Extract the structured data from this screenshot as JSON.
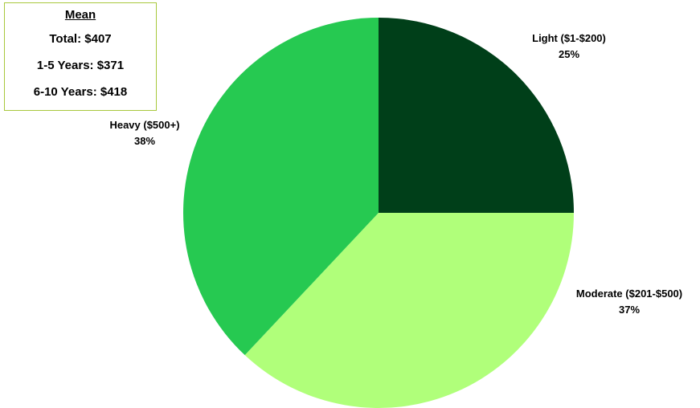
{
  "mean_box": {
    "title": "Mean",
    "lines": [
      "Total: $407",
      "1-5 Years: $371",
      "6-10 Years: $418"
    ]
  },
  "chart_data": {
    "type": "pie",
    "categories": [
      "Light ($1-$200)",
      "Moderate ($201-$500)",
      "Heavy ($500+)"
    ],
    "values": [
      25,
      37,
      38
    ],
    "value_labels": [
      "25%",
      "37%",
      "38%"
    ],
    "colors": [
      "#003f19",
      "#b0ff7a",
      "#26c951"
    ],
    "start_angle": "12 o'clock",
    "direction": "clockwise",
    "legend": "none"
  }
}
